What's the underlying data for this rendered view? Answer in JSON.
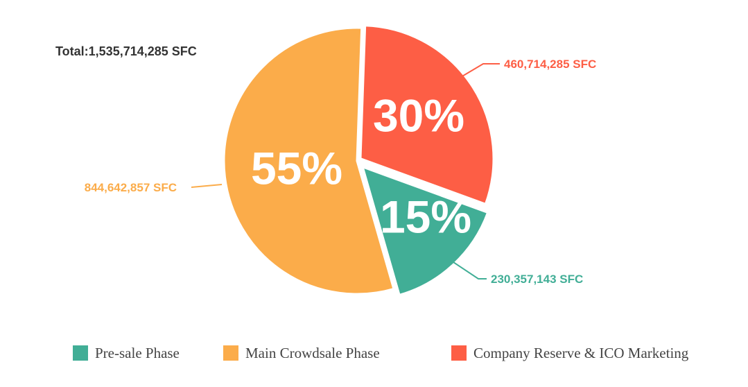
{
  "chart_data": {
    "type": "pie",
    "total_label": "Total:1,535,714,285 SFC",
    "slices": [
      {
        "name": "Pre-sale Phase",
        "percent": 15,
        "percent_label": "15%",
        "value": 230357143,
        "value_label": "230,357,143 SFC",
        "color": "#41ae96"
      },
      {
        "name": "Main Crowdsale Phase",
        "percent": 55,
        "percent_label": "55%",
        "value": 844642857,
        "value_label": "844,642,857 SFC",
        "color": "#fbac4a"
      },
      {
        "name": "Company Reserve & ICO Marketing",
        "percent": 30,
        "percent_label": "30%",
        "value": 460714285,
        "value_label": "460,714,285 SFC",
        "color": "#fd5e45"
      }
    ],
    "legend_position": "bottom"
  }
}
